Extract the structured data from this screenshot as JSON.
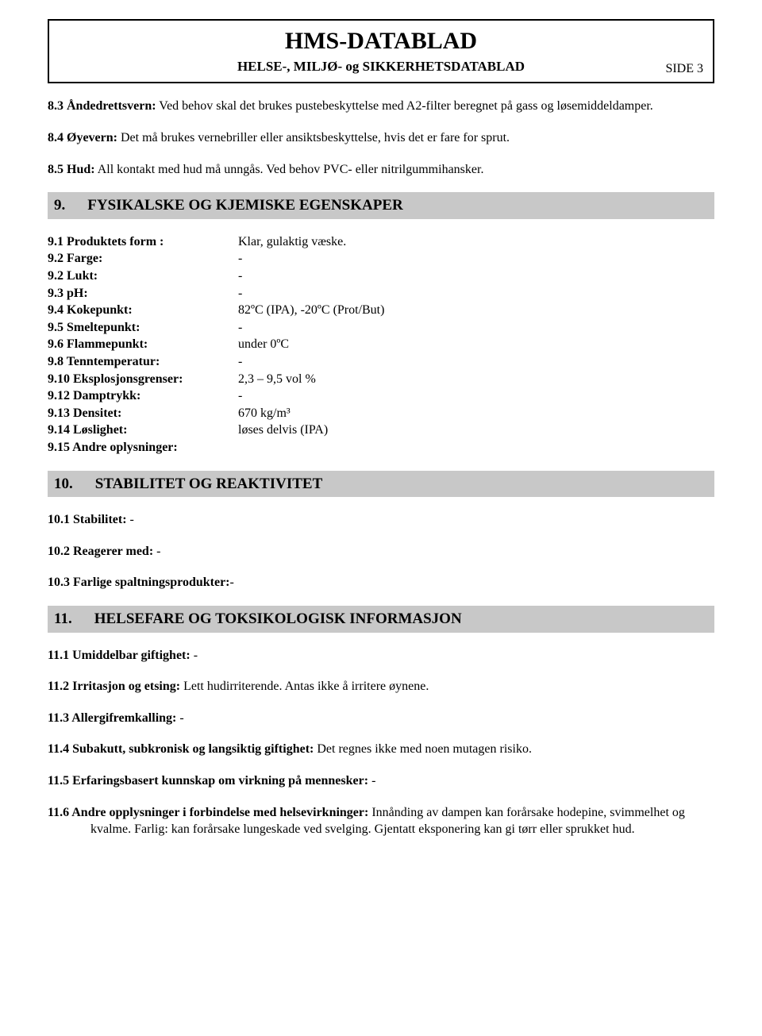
{
  "header": {
    "title": "HMS-DATABLAD",
    "subtitle": "HELSE-, MILJØ- og SIKKERHETSDATABLAD",
    "side_label": "SIDE 3"
  },
  "p83": {
    "label": "8.3 Åndedrettsvern:",
    "text": " Ved behov skal det brukes pustebeskyttelse med A2-filter beregnet på gass og løsemiddeldamper."
  },
  "p84": {
    "label": "8.4 Øyevern:",
    "text": " Det må brukes vernebriller eller ansiktsbeskyttelse, hvis det er fare for sprut."
  },
  "p85": {
    "label": "8.5 Hud:",
    "text": " All kontakt med hud må unngås. Ved behov PVC- eller nitrilgummihansker."
  },
  "section9": {
    "num": "9.",
    "title": "FYSIKALSKE OG KJEMISKE EGENSKAPER"
  },
  "kv": {
    "r1": {
      "label": "9.1 Produktets form :",
      "value": "Klar, gulaktig  væske."
    },
    "r2": {
      "label": "9.2 Farge:",
      "value": "-"
    },
    "r3": {
      "label": "9.2 Lukt:",
      "value": "-"
    },
    "r4": {
      "label": "9.3 pH:",
      "value": "-"
    },
    "r5": {
      "label": "9.4 Kokepunkt:",
      "value": "82ºC  (IPA), -20ºC (Prot/But)"
    },
    "r6": {
      "label": "9.5 Smeltepunkt:",
      "value": "-"
    },
    "r7": {
      "label": "9.6 Flammepunkt:",
      "value": "under 0ºC"
    },
    "r8": {
      "label": "9.8 Tenntemperatur:",
      "value": "-"
    },
    "r9": {
      "label": "9.10 Eksplosjonsgrenser:",
      "value": "2,3 – 9,5 vol %"
    },
    "r10": {
      "label": "9.12 Damptrykk:",
      "value": "-"
    },
    "r11": {
      "label": "9.13 Densitet:",
      "value": "670 kg/m³"
    },
    "r12": {
      "label": "9.14 Løslighet:",
      "value": "løses delvis (IPA)"
    },
    "r13": {
      "label": "9.15 Andre oplysninger:",
      "value": ""
    }
  },
  "section10": {
    "num": "10.",
    "title": "STABILITET OG REAKTIVITET"
  },
  "p101": {
    "label": "10.1 Stabilitet:",
    "text": "  -"
  },
  "p102": {
    "label": "10.2 Reagerer med:",
    "text": "  -"
  },
  "p103": {
    "label": "10.3 Farlige spaltningsprodukter:",
    "text": "-"
  },
  "section11": {
    "num": "11.",
    "title": "HELSEFARE OG TOKSIKOLOGISK INFORMASJON"
  },
  "p111": {
    "label": "11.1 Umiddelbar giftighet:",
    "text": " -"
  },
  "p112": {
    "label": "11.2 Irritasjon og etsing:",
    "text": " Lett hudirriterende. Antas ikke å irritere øynene."
  },
  "p113": {
    "label": "11.3 Allergifremkalling:",
    "text": " -"
  },
  "p114": {
    "label": "11.4 Subakutt, subkronisk og langsiktig giftighet:",
    "text": " Det regnes ikke med noen mutagen risiko."
  },
  "p115": {
    "label": "11.5 Erfaringsbasert kunnskap om virkning på mennesker:",
    "text": " -"
  },
  "p116": {
    "label": "11.6 Andre opplysninger i forbindelse med helsevirkninger:",
    "text": " Innånding av dampen kan forårsake hodepine, svimmelhet og kvalme. Farlig: kan forårsake lungeskade ved svelging. Gjentatt eksponering kan gi tørr eller sprukket hud."
  }
}
